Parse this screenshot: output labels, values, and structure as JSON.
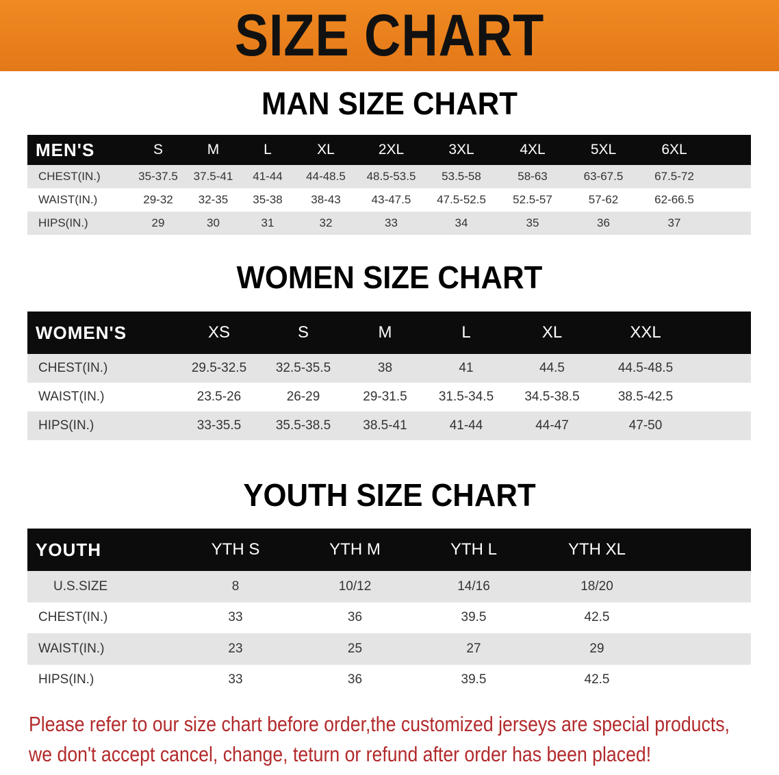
{
  "title": "SIZE CHART",
  "colors": {
    "banner": "#e8801f",
    "header_row": "#0c0c0c",
    "alt_row": "#e4e4e4",
    "note": "#b22a2c"
  },
  "men": {
    "title": "MAN SIZE CHART",
    "header": [
      "MEN'S",
      "S",
      "M",
      "L",
      "XL",
      "2XL",
      "3XL",
      "4XL",
      "5XL",
      "6XL"
    ],
    "rows": [
      [
        "CHEST(IN.)",
        "35-37.5",
        "37.5-41",
        "41-44",
        "44-48.5",
        "48.5-53.5",
        "53.5-58",
        "58-63",
        "63-67.5",
        "67.5-72"
      ],
      [
        "WAIST(IN.)",
        "29-32",
        "32-35",
        "35-38",
        "38-43",
        "43-47.5",
        "47.5-52.5",
        "52.5-57",
        "57-62",
        "62-66.5"
      ],
      [
        "HIPS(IN.)",
        "29",
        "30",
        "31",
        "32",
        "33",
        "34",
        "35",
        "36",
        "37"
      ]
    ]
  },
  "women": {
    "title": "WOMEN SIZE CHART",
    "header": [
      "WOMEN'S",
      "XS",
      "S",
      "M",
      "L",
      "XL",
      "XXL"
    ],
    "rows": [
      [
        "CHEST(IN.)",
        "29.5-32.5",
        "32.5-35.5",
        "38",
        "41",
        "44.5",
        "44.5-48.5"
      ],
      [
        "WAIST(IN.)",
        "23.5-26",
        "26-29",
        "29-31.5",
        "31.5-34.5",
        "34.5-38.5",
        "38.5-42.5"
      ],
      [
        "HIPS(IN.)",
        "33-35.5",
        "35.5-38.5",
        "38.5-41",
        "41-44",
        "44-47",
        "47-50"
      ]
    ]
  },
  "youth": {
    "title": "YOUTH SIZE CHART",
    "header": [
      "YOUTH",
      "YTH S",
      "YTH M",
      "YTH L",
      "YTH XL"
    ],
    "rows": [
      [
        "U.S.SIZE",
        "8",
        "10/12",
        "14/16",
        "18/20"
      ],
      [
        "CHEST(IN.)",
        "33",
        "36",
        "39.5",
        "42.5"
      ],
      [
        "WAIST(IN.)",
        "23",
        "25",
        "27",
        "29"
      ],
      [
        "HIPS(IN.)",
        "33",
        "36",
        "39.5",
        "42.5"
      ]
    ]
  },
  "note": [
    "Please refer to our size chart before order,the customized jerseys are special products,",
    "we don't accept cancel, change, teturn or refund after order has been placed!"
  ]
}
